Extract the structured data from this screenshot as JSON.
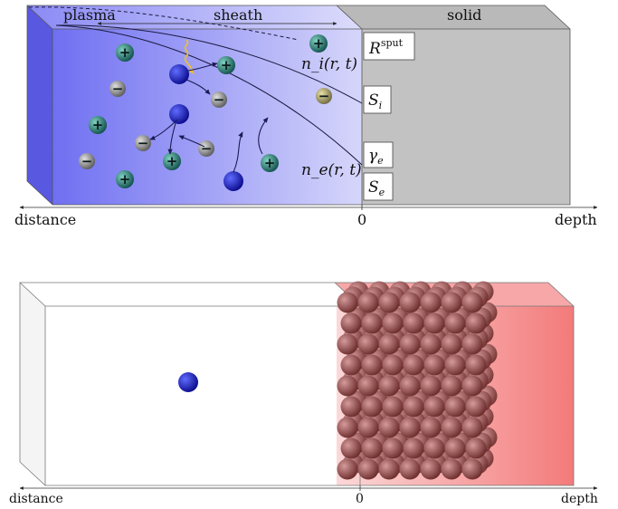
{
  "top_diagram": {
    "region_labels": {
      "plasma": "plasma",
      "sheath": "sheath",
      "solid": "solid"
    },
    "boundary_labels": {
      "r_sput_base": "R",
      "r_sput_sup": "sput",
      "s_i_base": "S",
      "s_i_sub": "i",
      "gamma_base": "γ",
      "gamma_sub": "e",
      "s_e_base": "S",
      "s_e_sub": "e"
    },
    "curve_labels": {
      "n_i": "n_i(r, t)",
      "n_e": "n_e(r, t)"
    },
    "axis": {
      "left": "distance",
      "zero": "0",
      "right": "depth"
    },
    "ion_sign": "+",
    "neutral_sign": "−",
    "colors": {
      "plasma": "#6a6af0",
      "solid": "#c0c0c0",
      "ion": "#1f6e6a",
      "neutral": "#8a8a8a",
      "electron": "#1515c8",
      "photon": "#f0c020"
    }
  },
  "bottom_diagram": {
    "axis": {
      "left": "distance",
      "zero": "0",
      "right": "depth"
    },
    "colors": {
      "solid": "#f07878",
      "atom": "#9a4a4a",
      "projectile": "#1515c8"
    }
  }
}
